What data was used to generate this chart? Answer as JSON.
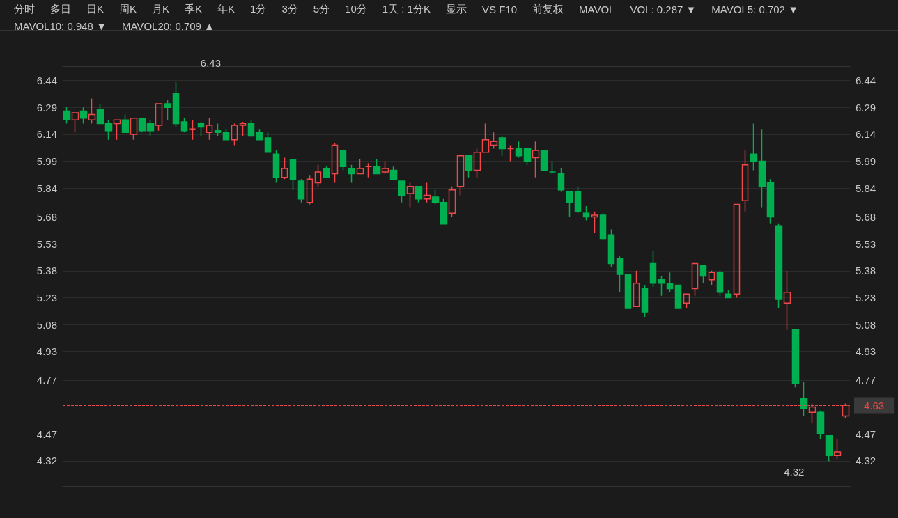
{
  "chart_data": {
    "type": "candlestick",
    "categories": [
      null,
      null,
      null,
      null,
      null,
      null,
      null,
      null,
      null,
      null,
      null,
      null,
      null,
      null,
      null,
      null,
      null,
      null,
      null,
      null,
      null,
      null,
      null,
      null,
      null,
      null,
      null,
      null,
      null,
      null,
      null,
      null,
      null,
      null,
      null,
      null,
      null,
      null,
      null,
      null,
      null,
      null,
      null,
      null,
      null,
      null,
      null,
      null,
      null,
      null,
      null,
      null,
      null,
      null,
      null,
      null,
      null,
      null,
      null,
      null,
      null,
      null,
      null,
      null,
      null,
      null,
      null,
      null,
      null,
      null,
      null,
      null,
      null,
      null,
      null,
      null,
      null,
      null,
      null,
      null,
      null,
      null,
      null,
      null,
      null,
      null,
      null,
      null,
      null,
      null,
      null,
      null,
      null,
      null
    ],
    "ohlc": [
      [
        6.27,
        6.29,
        6.2,
        6.22
      ],
      [
        6.22,
        6.26,
        6.15,
        6.26
      ],
      [
        6.27,
        6.29,
        6.2,
        6.23
      ],
      [
        6.22,
        6.34,
        6.2,
        6.25
      ],
      [
        6.28,
        6.31,
        6.2,
        6.2
      ],
      [
        6.2,
        6.22,
        6.11,
        6.16
      ],
      [
        6.2,
        6.22,
        6.11,
        6.22
      ],
      [
        6.22,
        6.25,
        6.15,
        6.15
      ],
      [
        6.14,
        6.23,
        6.11,
        6.23
      ],
      [
        6.23,
        6.23,
        6.15,
        6.16
      ],
      [
        6.2,
        6.22,
        6.13,
        6.16
      ],
      [
        6.19,
        6.31,
        6.16,
        6.31
      ],
      [
        6.31,
        6.33,
        6.22,
        6.29
      ],
      [
        6.37,
        6.43,
        6.18,
        6.2
      ],
      [
        6.21,
        6.23,
        6.15,
        6.16
      ],
      [
        6.17,
        6.22,
        6.11,
        6.17
      ],
      [
        6.2,
        6.21,
        6.13,
        6.18
      ],
      [
        6.15,
        6.23,
        6.11,
        6.19
      ],
      [
        6.16,
        6.2,
        6.13,
        6.15
      ],
      [
        6.15,
        6.17,
        6.11,
        6.11
      ],
      [
        6.11,
        6.2,
        6.08,
        6.19
      ],
      [
        6.19,
        6.21,
        6.13,
        6.2
      ],
      [
        6.2,
        6.22,
        6.13,
        6.13
      ],
      [
        6.15,
        6.17,
        6.11,
        6.11
      ],
      [
        6.12,
        6.15,
        6.04,
        6.04
      ],
      [
        6.03,
        6.05,
        5.87,
        5.9
      ],
      [
        5.9,
        6.01,
        5.89,
        5.95
      ],
      [
        6.0,
        6.0,
        5.83,
        5.89
      ],
      [
        5.88,
        5.89,
        5.76,
        5.78
      ],
      [
        5.76,
        5.91,
        5.75,
        5.89
      ],
      [
        5.87,
        5.97,
        5.85,
        5.93
      ],
      [
        5.95,
        5.96,
        5.9,
        5.9
      ],
      [
        5.92,
        6.09,
        5.87,
        6.08
      ],
      [
        6.05,
        6.05,
        5.94,
        5.96
      ],
      [
        5.95,
        5.97,
        5.87,
        5.92
      ],
      [
        5.92,
        6.0,
        5.92,
        5.95
      ],
      [
        5.96,
        5.98,
        5.9,
        5.96
      ],
      [
        5.96,
        6.0,
        5.92,
        5.92
      ],
      [
        5.93,
        5.99,
        5.92,
        5.95
      ],
      [
        5.94,
        5.96,
        5.89,
        5.89
      ],
      [
        5.88,
        5.88,
        5.76,
        5.8
      ],
      [
        5.81,
        5.87,
        5.73,
        5.85
      ],
      [
        5.85,
        5.85,
        5.76,
        5.78
      ],
      [
        5.78,
        5.87,
        5.76,
        5.8
      ],
      [
        5.79,
        5.83,
        5.75,
        5.76
      ],
      [
        5.76,
        5.78,
        5.64,
        5.64
      ],
      [
        5.7,
        5.85,
        5.68,
        5.83
      ],
      [
        5.85,
        6.02,
        5.8,
        6.02
      ],
      [
        6.02,
        6.02,
        5.9,
        5.94
      ],
      [
        5.94,
        6.06,
        5.9,
        6.04
      ],
      [
        6.04,
        6.2,
        6.04,
        6.11
      ],
      [
        6.08,
        6.15,
        6.06,
        6.1
      ],
      [
        6.12,
        6.13,
        6.02,
        6.06
      ],
      [
        6.06,
        6.08,
        5.99,
        6.06
      ],
      [
        6.06,
        6.1,
        6.01,
        6.02
      ],
      [
        6.06,
        6.06,
        5.97,
        5.99
      ],
      [
        6.01,
        6.1,
        5.9,
        6.05
      ],
      [
        6.05,
        6.05,
        5.94,
        5.94
      ],
      [
        5.93,
        5.99,
        5.92,
        5.93
      ],
      [
        5.92,
        5.95,
        5.82,
        5.83
      ],
      [
        5.82,
        5.82,
        5.68,
        5.76
      ],
      [
        5.82,
        5.85,
        5.7,
        5.71
      ],
      [
        5.7,
        5.74,
        5.66,
        5.68
      ],
      [
        5.68,
        5.71,
        5.59,
        5.69
      ],
      [
        5.69,
        5.7,
        5.55,
        5.56
      ],
      [
        5.58,
        5.61,
        5.4,
        5.42
      ],
      [
        5.45,
        5.46,
        5.26,
        5.36
      ],
      [
        5.36,
        5.36,
        5.17,
        5.17
      ],
      [
        5.18,
        5.38,
        5.18,
        5.31
      ],
      [
        5.28,
        5.3,
        5.12,
        5.15
      ],
      [
        5.42,
        5.49,
        5.29,
        5.31
      ],
      [
        5.33,
        5.35,
        5.24,
        5.31
      ],
      [
        5.31,
        5.37,
        5.26,
        5.28
      ],
      [
        5.3,
        5.3,
        5.17,
        5.17
      ],
      [
        5.2,
        5.25,
        5.17,
        5.25
      ],
      [
        5.28,
        5.42,
        5.24,
        5.42
      ],
      [
        5.41,
        5.41,
        5.31,
        5.35
      ],
      [
        5.33,
        5.38,
        5.3,
        5.37
      ],
      [
        5.37,
        5.38,
        5.24,
        5.26
      ],
      [
        5.25,
        5.27,
        5.23,
        5.23
      ],
      [
        5.25,
        5.75,
        5.23,
        5.75
      ],
      [
        5.77,
        6.05,
        5.71,
        5.97
      ],
      [
        6.03,
        6.2,
        5.94,
        5.99
      ],
      [
        5.99,
        6.17,
        5.73,
        5.85
      ],
      [
        5.87,
        5.89,
        5.64,
        5.68
      ],
      [
        5.63,
        5.64,
        5.17,
        5.22
      ],
      [
        5.2,
        5.38,
        5.05,
        5.26
      ],
      [
        5.05,
        5.05,
        4.73,
        4.75
      ],
      [
        4.67,
        4.76,
        4.57,
        4.61
      ],
      [
        4.59,
        4.64,
        4.53,
        4.62
      ],
      [
        4.59,
        4.6,
        4.44,
        4.47
      ],
      [
        4.46,
        4.46,
        4.32,
        4.35
      ],
      [
        4.35,
        4.44,
        4.33,
        4.37
      ],
      [
        4.57,
        4.64,
        4.56,
        4.63
      ]
    ],
    "ylim": [
      4.18,
      6.52
    ],
    "yticks": [
      4.32,
      4.47,
      4.77,
      4.93,
      5.08,
      5.23,
      5.38,
      5.53,
      5.68,
      5.84,
      5.99,
      6.14,
      6.29,
      6.44
    ],
    "y2lim": [
      4.18,
      6.52
    ],
    "y2ticks": [
      4.32,
      4.47,
      4.77,
      4.93,
      5.08,
      5.23,
      5.38,
      5.53,
      5.68,
      5.84,
      5.99,
      6.14,
      6.29,
      6.44
    ],
    "grid": "y",
    "ref_lines": [
      {
        "axis": "y",
        "value": 4.63,
        "label": "4.63",
        "color": "#e84a4a",
        "line_style": "dashed"
      }
    ],
    "annotations": [
      "6.43",
      "4.32",
      "分时",
      "多日",
      "日K",
      "周K",
      "月K",
      "季K",
      "年K",
      "1分",
      "3分",
      "5分",
      "10分",
      "1天 : 1分K",
      "显示",
      "VS F10",
      "前复权",
      "MAVOL",
      "VOL: 0.287 ▼",
      "MAVOL5: 0.702 ▼",
      "MAVOL10: 0.948 ▼",
      "MAVOL20: 0.709 ▲"
    ]
  }
}
